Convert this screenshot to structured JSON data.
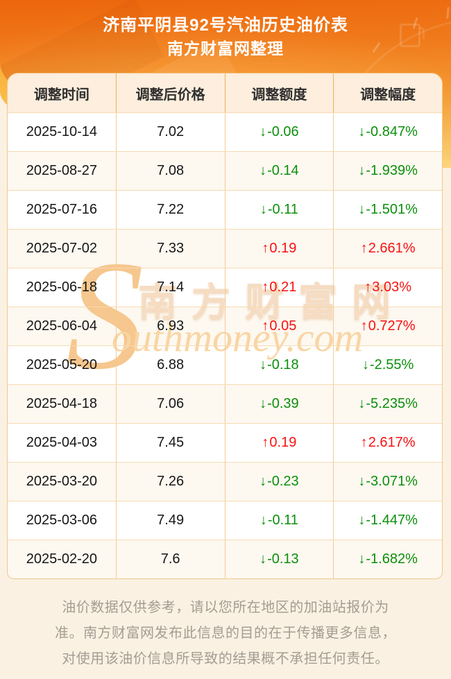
{
  "header": {
    "title": "济南平阴县92号汽油历史油价表",
    "subtitle": "南方财富网整理"
  },
  "table": {
    "columns": [
      "调整时间",
      "调整后价格",
      "调整额度",
      "调整幅度"
    ],
    "arrows": {
      "up": "↑",
      "down": "↓"
    },
    "rows": [
      {
        "date": "2025-10-14",
        "price": "7.02",
        "change": "-0.06",
        "pct": "-0.847%",
        "dir": "down"
      },
      {
        "date": "2025-08-27",
        "price": "7.08",
        "change": "-0.14",
        "pct": "-1.939%",
        "dir": "down"
      },
      {
        "date": "2025-07-16",
        "price": "7.22",
        "change": "-0.11",
        "pct": "-1.501%",
        "dir": "down"
      },
      {
        "date": "2025-07-02",
        "price": "7.33",
        "change": "0.19",
        "pct": "2.661%",
        "dir": "up"
      },
      {
        "date": "2025-06-18",
        "price": "7.14",
        "change": "0.21",
        "pct": "3.03%",
        "dir": "up"
      },
      {
        "date": "2025-06-04",
        "price": "6.93",
        "change": "0.05",
        "pct": "0.727%",
        "dir": "up"
      },
      {
        "date": "2025-05-20",
        "price": "6.88",
        "change": "-0.18",
        "pct": "-2.55%",
        "dir": "down"
      },
      {
        "date": "2025-04-18",
        "price": "7.06",
        "change": "-0.39",
        "pct": "-5.235%",
        "dir": "down"
      },
      {
        "date": "2025-04-03",
        "price": "7.45",
        "change": "0.19",
        "pct": "2.617%",
        "dir": "up"
      },
      {
        "date": "2025-03-20",
        "price": "7.26",
        "change": "-0.23",
        "pct": "-3.071%",
        "dir": "down"
      },
      {
        "date": "2025-03-06",
        "price": "7.49",
        "change": "-0.11",
        "pct": "-1.447%",
        "dir": "down"
      },
      {
        "date": "2025-02-20",
        "price": "7.6",
        "change": "-0.13",
        "pct": "-1.682%",
        "dir": "down"
      }
    ]
  },
  "watermark": {
    "s": "S",
    "cn": "南方财富网",
    "en": "outhmoney.com"
  },
  "footer": {
    "lines": [
      "油价数据仅供参考，请以您所在地区的加油站报价为",
      "准。南方财富网发布此信息的目的在于传播更多信息，",
      "对使用该油价信息所导致的结果概不承担任何责任。"
    ]
  },
  "colors": {
    "up_red": "#f71111",
    "down_green": "#0b8f0b",
    "header_orange_top": "#ec660c",
    "header_orange_bottom": "#f9cd72"
  }
}
